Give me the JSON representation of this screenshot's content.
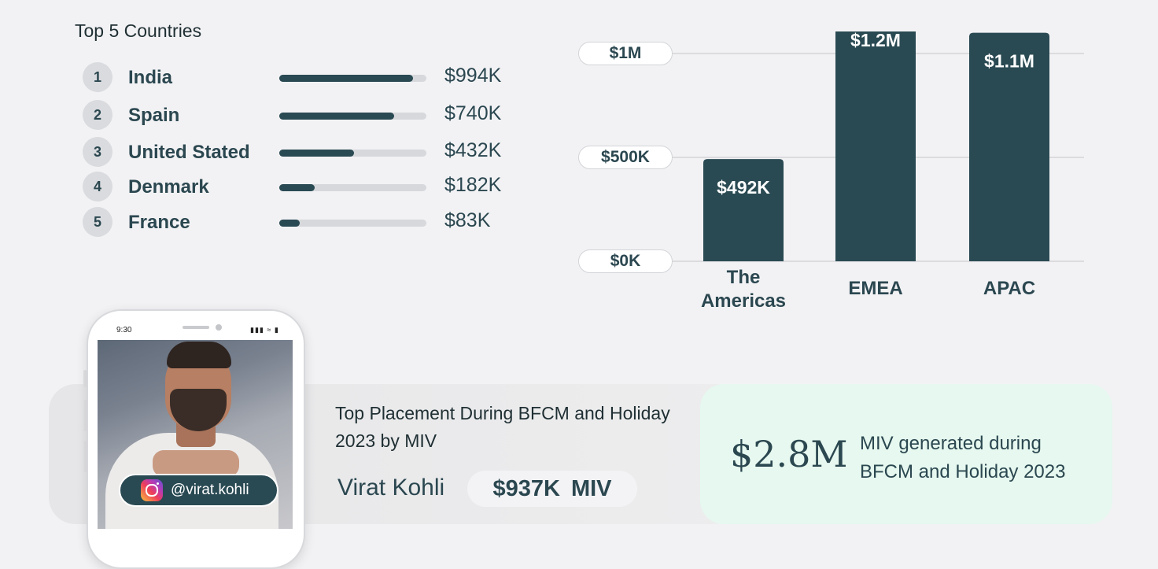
{
  "countries": {
    "title": "Top 5 Countries",
    "items": [
      {
        "rank": "1",
        "name": "India",
        "value": "$994K",
        "progress": 0.91
      },
      {
        "rank": "2",
        "name": "Spain",
        "value": "$740K",
        "progress": 0.78
      },
      {
        "rank": "3",
        "name": "United Stated",
        "value": "$432K",
        "progress": 0.51
      },
      {
        "rank": "4",
        "name": "Denmark",
        "value": "$182K",
        "progress": 0.24
      },
      {
        "rank": "5",
        "name": "France",
        "value": "$83K",
        "progress": 0.14
      }
    ]
  },
  "chart_data": {
    "type": "bar",
    "categories": [
      "The Americas",
      "EMEA",
      "APAC"
    ],
    "category_lines": [
      [
        "The",
        "Americas"
      ],
      [
        "EMEA"
      ],
      [
        "APAC"
      ]
    ],
    "values": [
      492000,
      1200000,
      1100000
    ],
    "value_labels": [
      "$492K",
      "$1.2M",
      "$1.1M"
    ],
    "y_ticks": [
      0,
      500000,
      1000000
    ],
    "y_tick_labels": [
      "$0K",
      "$500K",
      "$1M"
    ],
    "ylim": [
      0,
      1000000
    ],
    "grid": true,
    "bar_color": "#2a4a53"
  },
  "placement": {
    "title": "Top Placement During BFCM and Holiday 2023 by MIV",
    "creator_name": "Virat Kohli",
    "miv_value": "$937K",
    "miv_unit": "MIV",
    "handle": "@virat.kohli",
    "social_icon": "instagram-icon"
  },
  "phone": {
    "time": "9:30",
    "status_icons": "signal wifi battery"
  },
  "summary": {
    "value": "$2.8M",
    "description": "MIV generated during BFCM and Holiday 2023"
  },
  "colors": {
    "accent": "#2a4a53",
    "summary_bg": "#e6f8ef",
    "page_bg": "#f2f2f4"
  }
}
